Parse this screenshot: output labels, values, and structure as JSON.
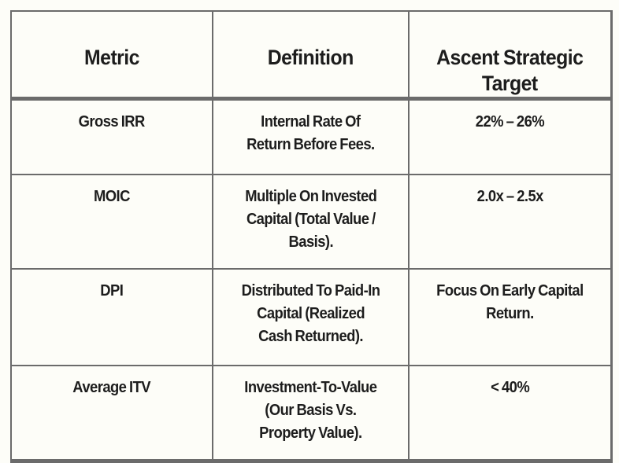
{
  "colors": {
    "border": "#6b6b6b",
    "text": "#1d1d1d",
    "background": "#fdfdf8"
  },
  "table": {
    "headers": [
      "Metric",
      "Definition",
      "Ascent Strategic\nTarget"
    ],
    "rows": [
      {
        "metric": "Gross IRR",
        "definition": "Internal Rate Of\nReturn Before Fees.",
        "target": "22% – 26%"
      },
      {
        "metric": "MOIC",
        "definition": "Multiple On Invested\nCapital (Total Value /\nBasis).",
        "target": "2.0x – 2.5x"
      },
      {
        "metric": "DPI",
        "definition": "Distributed To Paid-In\nCapital (Realized\nCash Returned).",
        "target": "Focus On Early Capital\nReturn."
      },
      {
        "metric": "Average ITV",
        "definition": "Investment-To-Value\n(Our Basis Vs.\nProperty Value).",
        "target": "< 40%"
      }
    ]
  }
}
